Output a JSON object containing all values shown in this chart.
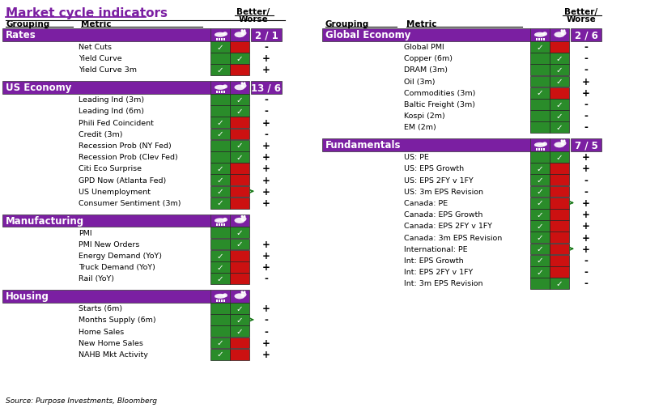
{
  "title": "Market cycle indicators",
  "purple": "#7b1fa2",
  "green": "#2a8c2a",
  "red": "#cc1111",
  "white": "#ffffff",
  "black": "#000000",
  "check": "✓",
  "source": "Source: Purpose Investments, Bloomberg",
  "left_groups": [
    {
      "name": "Rates",
      "score": "2 / 1",
      "metrics": [
        "Net Cuts",
        "Yield Curve",
        "Yield Curve 3m"
      ],
      "bull": [
        true,
        false,
        true
      ],
      "bear": [
        false,
        true,
        false
      ],
      "signal": [
        "-",
        "+",
        "+"
      ],
      "arrow": [
        false,
        false,
        false
      ]
    },
    {
      "name": "US Economy",
      "score": "13 / 6",
      "metrics": [
        "Leading Ind (3m)",
        "Leading Ind (6m)",
        "Phili Fed Coincident",
        "Credit (3m)",
        "Recession Prob (NY Fed)",
        "Recession Prob (Clev Fed)",
        "Citi Eco Surprise",
        "GPD Now (Atlanta Fed)",
        "US Unemployment",
        "Consumer Sentiment (3m)"
      ],
      "bull": [
        false,
        false,
        true,
        true,
        false,
        false,
        true,
        true,
        true,
        true
      ],
      "bear": [
        true,
        true,
        false,
        false,
        true,
        true,
        false,
        false,
        false,
        false
      ],
      "signal": [
        "-",
        "-",
        "+",
        "-",
        "+",
        "+",
        "+",
        "+",
        "+",
        "+"
      ],
      "arrow": [
        false,
        false,
        false,
        false,
        false,
        false,
        false,
        false,
        true,
        false
      ]
    },
    {
      "name": "Manufacturing",
      "score": "",
      "metrics": [
        "PMI",
        "PMI New Orders",
        "Energy Demand (YoY)",
        "Truck Demand (YoY)",
        "Rail (YoY)"
      ],
      "bull": [
        false,
        false,
        true,
        true,
        true
      ],
      "bear": [
        true,
        true,
        false,
        false,
        false
      ],
      "signal": [
        "",
        "+",
        "+",
        "+",
        "-"
      ],
      "arrow": [
        false,
        false,
        false,
        false,
        false
      ]
    },
    {
      "name": "Housing",
      "score": "",
      "metrics": [
        "Starts (6m)",
        "Months Supply (6m)",
        "Home Sales",
        "New Home Sales",
        "NAHB Mkt Activity"
      ],
      "bull": [
        false,
        false,
        false,
        true,
        true
      ],
      "bear": [
        true,
        true,
        true,
        false,
        false
      ],
      "signal": [
        "+",
        "-",
        "-",
        "+",
        "+"
      ],
      "arrow": [
        false,
        true,
        false,
        false,
        false
      ]
    }
  ],
  "right_groups": [
    {
      "name": "Global Economy",
      "score": "2 / 6",
      "metrics": [
        "Global PMI",
        "Copper (6m)",
        "DRAM (3m)",
        "Oil (3m)",
        "Commodities (3m)",
        "Baltic Freight (3m)",
        "Kospi (2m)",
        "EM (2m)"
      ],
      "bull": [
        true,
        false,
        false,
        false,
        true,
        false,
        false,
        false
      ],
      "bear": [
        false,
        true,
        true,
        true,
        false,
        true,
        true,
        true
      ],
      "signal": [
        "-",
        "-",
        "-",
        "+",
        "+",
        "-",
        "-",
        "-"
      ],
      "arrow": [
        false,
        false,
        false,
        false,
        false,
        false,
        false,
        false
      ]
    },
    {
      "name": "Fundamentals",
      "score": "7 / 5",
      "metrics": [
        "US: PE",
        "US: EPS Growth",
        "US: EPS 2FY v 1FY",
        "US: 3m EPS Revision",
        "Canada: PE",
        "Canada: EPS Growth",
        "Canada: EPS 2FY v 1FY",
        "Canada: 3m EPS Revision",
        "International: PE",
        "Int: EPS Growth",
        "Int: EPS 2FY v 1FY",
        "Int: 3m EPS Revision"
      ],
      "bull": [
        false,
        true,
        true,
        true,
        true,
        true,
        true,
        true,
        true,
        true,
        true,
        false
      ],
      "bear": [
        true,
        false,
        false,
        false,
        false,
        false,
        false,
        false,
        false,
        false,
        false,
        true
      ],
      "signal": [
        "+",
        "+",
        "-",
        "-",
        "+",
        "+",
        "+",
        "+",
        "+",
        "-",
        "-",
        "-"
      ],
      "arrow": [
        false,
        false,
        false,
        false,
        true,
        false,
        false,
        false,
        true,
        false,
        false,
        false
      ]
    }
  ]
}
